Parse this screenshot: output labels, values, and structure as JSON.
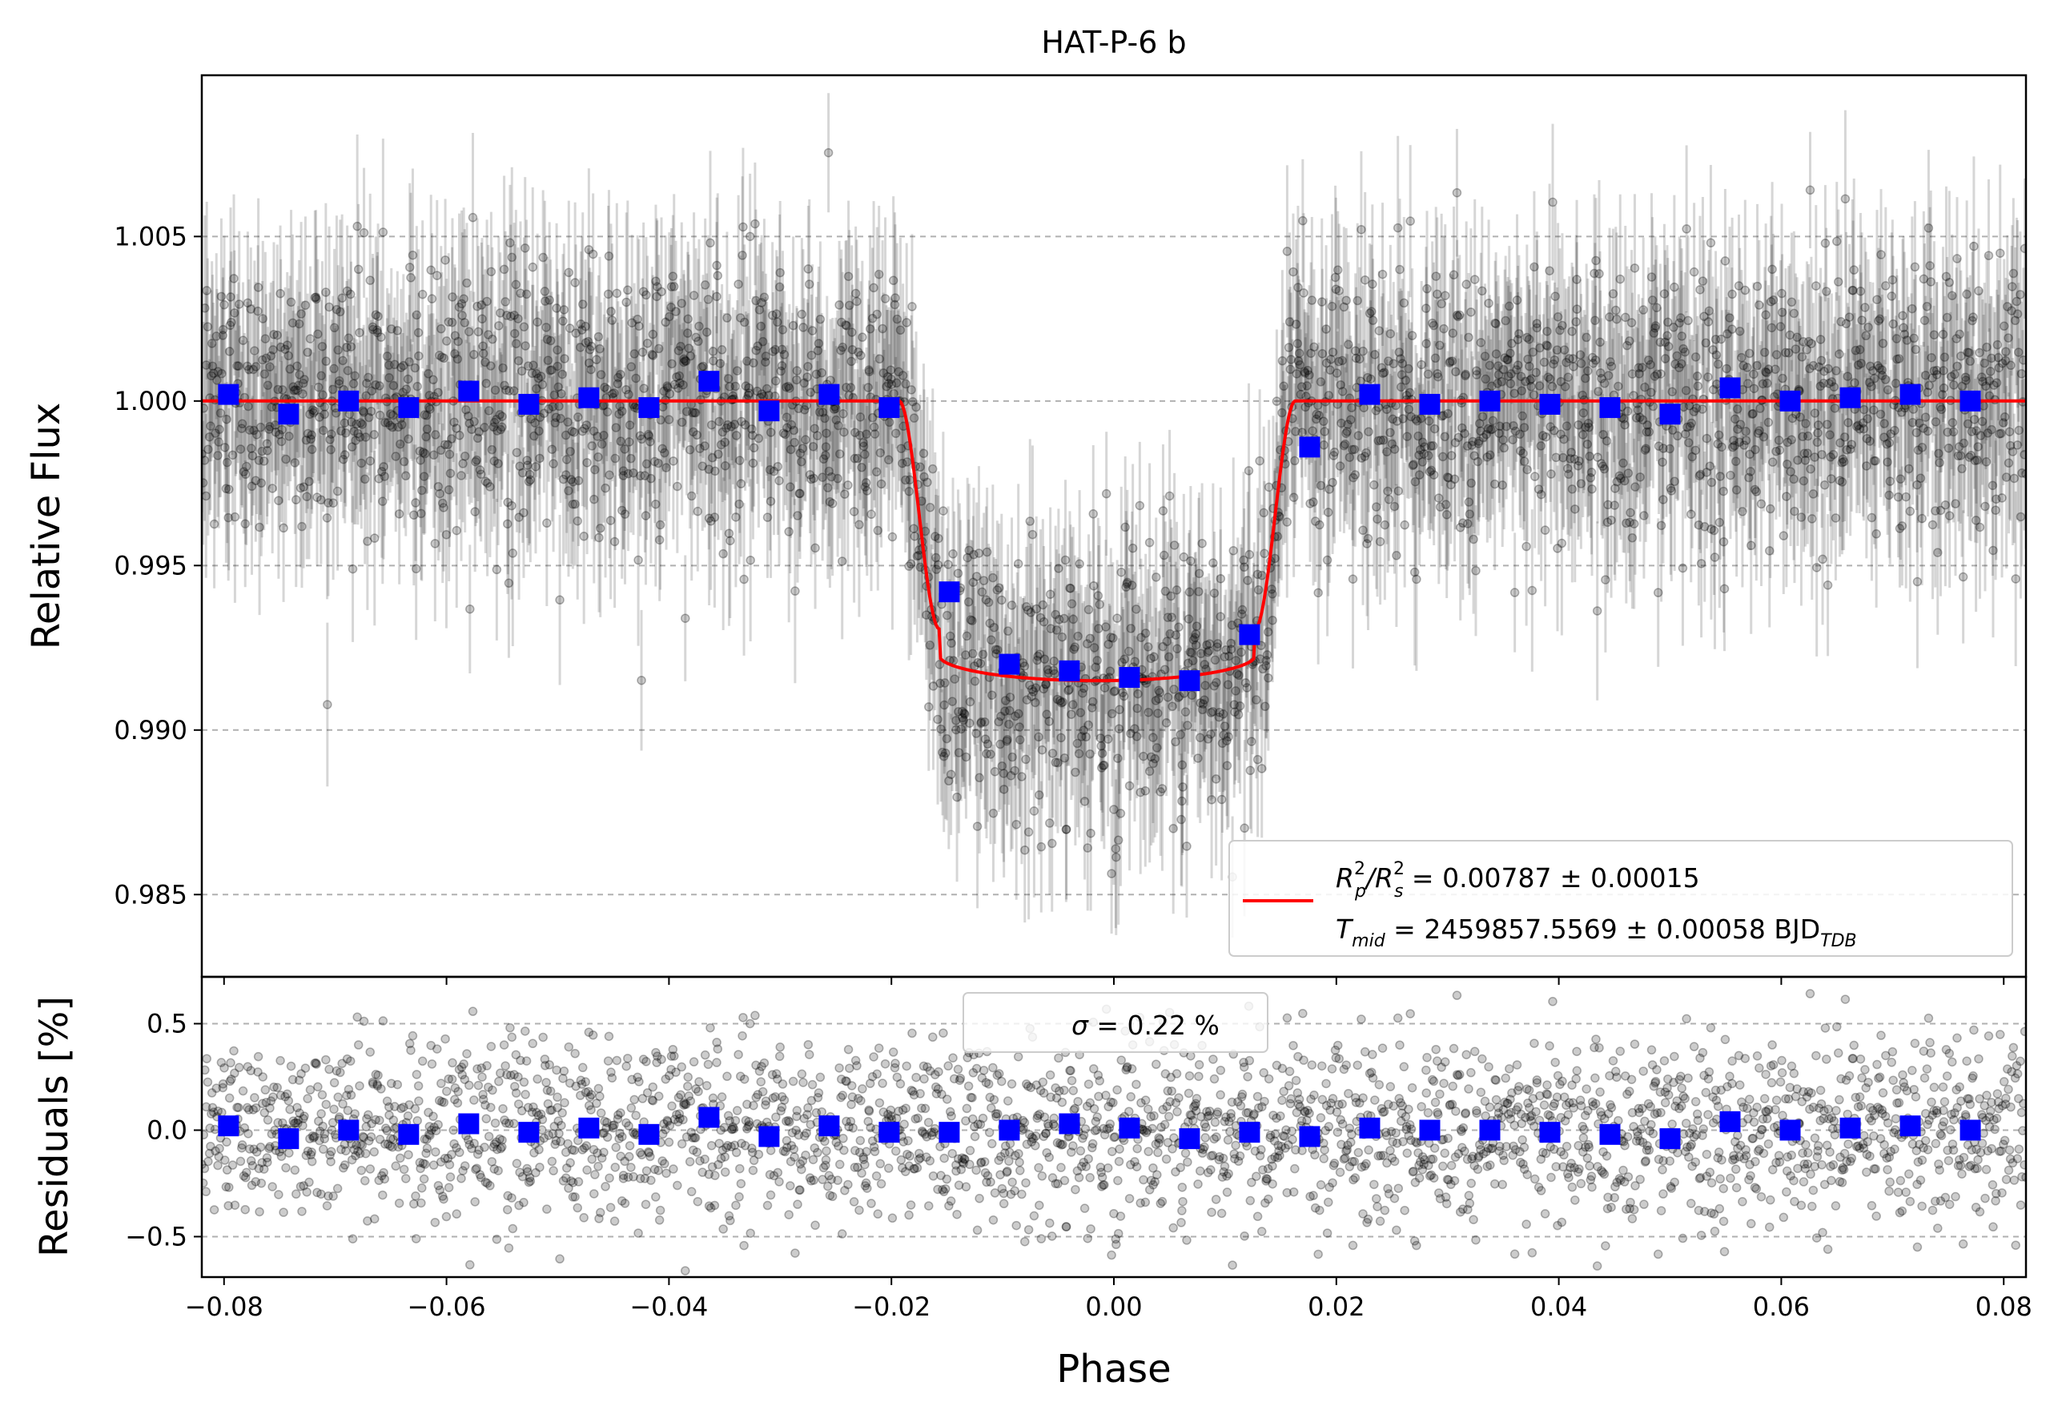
{
  "chart_data": [
    {
      "panel": "main",
      "type": "scatter",
      "title": "HAT-P-6 b",
      "xlabel": "",
      "ylabel": "Relative Flux",
      "xlim": [
        -0.082,
        0.082
      ],
      "ylim": [
        0.9825,
        1.0099
      ],
      "x_ticks": [
        -0.08,
        -0.06,
        -0.04,
        -0.02,
        0.0,
        0.02,
        0.04,
        0.06,
        0.08
      ],
      "x_tick_labels": [
        "",
        "",
        "",
        "",
        "",
        "",
        "",
        "",
        ""
      ],
      "y_ticks": [
        0.985,
        0.99,
        0.995,
        1.0,
        1.005
      ],
      "y_tick_labels": [
        "0.985",
        "0.990",
        "0.995",
        "1.000",
        "1.005"
      ],
      "grid": "horizontal dashed",
      "series": [
        {
          "kind": "raw",
          "color": "#000000",
          "count": 2600,
          "yerr": 0.0022,
          "x_range": [
            -0.082,
            0.082
          ]
        },
        {
          "kind": "binned",
          "color": "#0000ff",
          "marker": "square",
          "x": [
            -0.0796,
            -0.0742,
            -0.0688,
            -0.0634,
            -0.058,
            -0.0526,
            -0.0472,
            -0.0418,
            -0.0364,
            -0.031,
            -0.0256,
            -0.0202,
            -0.0148,
            -0.0094,
            -0.004,
            0.0014,
            0.0068,
            0.0122,
            0.0176,
            0.023,
            0.0284,
            0.0338,
            0.0392,
            0.0446,
            0.05,
            0.0554,
            0.0608,
            0.0662,
            0.0716,
            0.077
          ],
          "y": [
            1.0002,
            0.9996,
            1.0,
            0.9998,
            1.0003,
            0.9999,
            1.0001,
            0.9998,
            1.0006,
            0.9997,
            1.0002,
            0.9998,
            0.9942,
            0.992,
            0.9918,
            0.9916,
            0.9915,
            0.9929,
            0.9986,
            1.0002,
            0.9999,
            1.0,
            0.9999,
            0.9998,
            0.9996,
            1.0004,
            1.0,
            1.0001,
            1.0002,
            1.0
          ]
        },
        {
          "kind": "model",
          "name": "R_p^2/R_s^2 = 0.00787 ± 0.00015, T_mid = 2459857.5569 ± 0.00058 BJD_TDB",
          "color": "#ff0000",
          "depth": 0.00787,
          "t_mid_phase": -0.0015,
          "t14_half": 0.0178,
          "t_ingress": 0.0036
        }
      ],
      "legend": {
        "position": "lower right",
        "lines": [
          {
            "var": "R",
            "sub1": "p",
            "sup1": "2",
            "sep": "/R",
            "sub2": "s",
            "sup2": "2",
            "rest": " = 0.00787 ± 0.00015"
          },
          {
            "var": "T",
            "sub1": "mid",
            "rest": " = 2459857.5569 ± 0.00058 BJD",
            "sub2": "TDB"
          }
        ]
      }
    },
    {
      "panel": "residuals",
      "type": "scatter",
      "xlabel": "Phase",
      "ylabel": "Residuals [%]",
      "xlim": [
        -0.082,
        0.082
      ],
      "ylim": [
        -0.69,
        0.72
      ],
      "x_ticks": [
        -0.08,
        -0.06,
        -0.04,
        -0.02,
        0.0,
        0.02,
        0.04,
        0.06,
        0.08
      ],
      "x_tick_labels": [
        "−0.08",
        "−0.06",
        "−0.04",
        "−0.02",
        "0.00",
        "0.02",
        "0.04",
        "0.06",
        "0.08"
      ],
      "y_ticks": [
        -0.5,
        0.0,
        0.5
      ],
      "y_tick_labels": [
        "−0.5",
        "0.0",
        "0.5"
      ],
      "grid": "horizontal dashed",
      "series": [
        {
          "kind": "raw",
          "color": "#000000",
          "count": 2600,
          "sigma_percent": 0.22
        },
        {
          "kind": "binned",
          "color": "#0000ff",
          "marker": "square",
          "x": [
            -0.0796,
            -0.0742,
            -0.0688,
            -0.0634,
            -0.058,
            -0.0526,
            -0.0472,
            -0.0418,
            -0.0364,
            -0.031,
            -0.0256,
            -0.0202,
            -0.0148,
            -0.0094,
            -0.004,
            0.0014,
            0.0068,
            0.0122,
            0.0176,
            0.023,
            0.0284,
            0.0338,
            0.0392,
            0.0446,
            0.05,
            0.0554,
            0.0608,
            0.0662,
            0.0716,
            0.077
          ],
          "y": [
            0.02,
            -0.04,
            0.0,
            -0.02,
            0.03,
            -0.01,
            0.01,
            -0.02,
            0.06,
            -0.03,
            0.02,
            -0.01,
            -0.01,
            0.0,
            0.03,
            0.01,
            -0.04,
            -0.01,
            -0.03,
            0.01,
            0.0,
            0.0,
            -0.01,
            -0.02,
            -0.04,
            0.04,
            0.0,
            0.01,
            0.02,
            0.0
          ]
        }
      ],
      "legend": {
        "position": "upper center",
        "symbol": "σ",
        "text": " = 0.22 %"
      }
    }
  ]
}
